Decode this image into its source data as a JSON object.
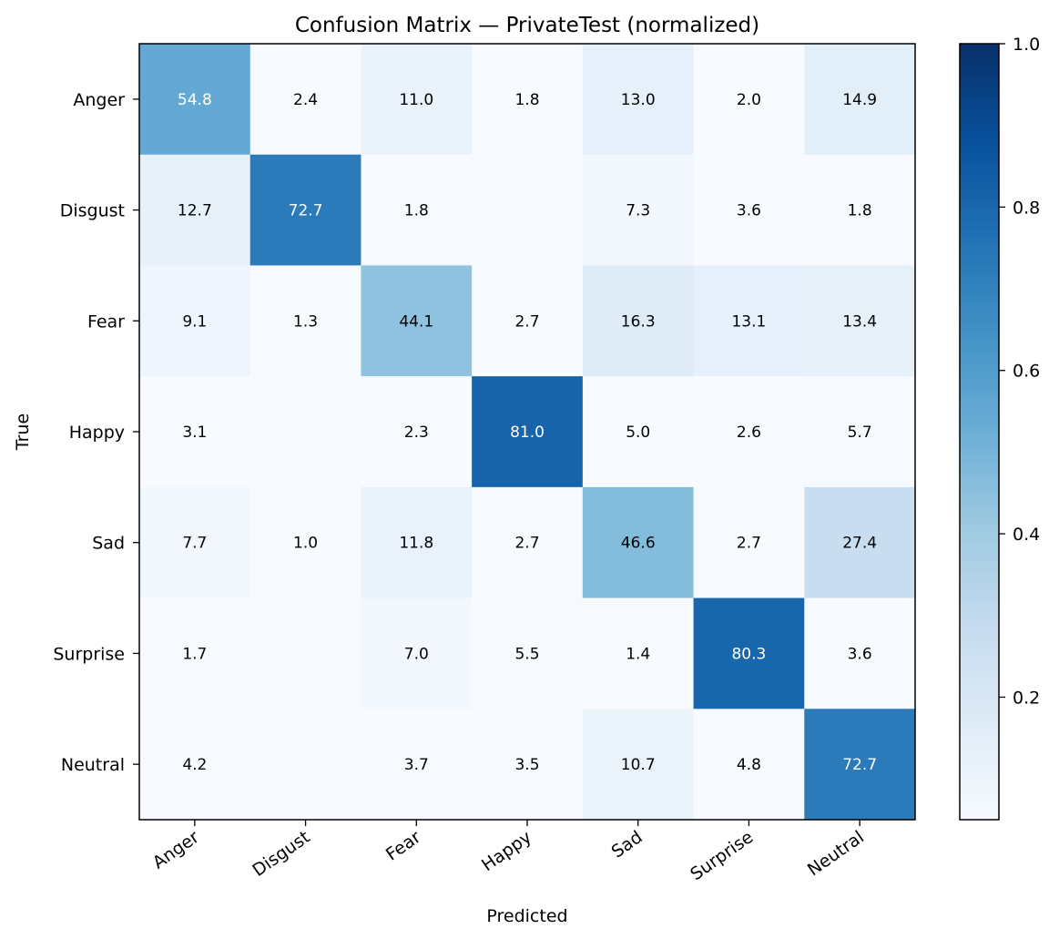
{
  "chart_data": {
    "type": "heatmap",
    "title": "Confusion Matrix — PrivateTest (normalized)",
    "xlabel": "Predicted",
    "ylabel": "True",
    "x_categories": [
      "Anger",
      "Disgust",
      "Fear",
      "Happy",
      "Sad",
      "Surprise",
      "Neutral"
    ],
    "y_categories": [
      "Anger",
      "Disgust",
      "Fear",
      "Happy",
      "Sad",
      "Surprise",
      "Neutral"
    ],
    "values": [
      [
        54.8,
        2.4,
        11.0,
        1.8,
        13.0,
        2.0,
        14.9
      ],
      [
        12.7,
        72.7,
        1.8,
        null,
        7.3,
        3.6,
        1.8
      ],
      [
        9.1,
        1.3,
        44.1,
        2.7,
        16.3,
        13.1,
        13.4
      ],
      [
        3.1,
        null,
        2.3,
        81.0,
        5.0,
        2.6,
        5.7
      ],
      [
        7.7,
        1.0,
        11.8,
        2.7,
        46.6,
        2.7,
        27.4
      ],
      [
        1.7,
        null,
        7.0,
        5.5,
        1.4,
        80.3,
        3.6
      ],
      [
        4.2,
        null,
        3.7,
        3.5,
        10.7,
        4.8,
        72.7
      ]
    ],
    "value_unit": "percent",
    "colormap": "Blues",
    "colorbar": {
      "range": [
        0.05,
        1.0
      ],
      "ticks": [
        0.2,
        0.4,
        0.6,
        0.8,
        1.0
      ],
      "tick_labels": [
        "0.2",
        "0.4",
        "0.6",
        "0.8",
        "1.0"
      ]
    },
    "colors": {
      "low": "#f7fbff",
      "high": "#08306b",
      "text_dark": "#000000",
      "text_light": "#ffffff"
    }
  }
}
